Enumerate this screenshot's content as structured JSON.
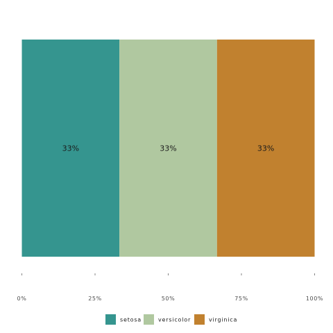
{
  "chart_data": {
    "type": "bar",
    "orientation": "horizontal",
    "stacked": "percent",
    "categories": [
      "setosa",
      "versicolor",
      "virginica"
    ],
    "values": [
      33.33,
      33.33,
      33.34
    ],
    "data_labels": [
      "33%",
      "33%",
      "33%"
    ],
    "colors": [
      "#35958f",
      "#b0c8a0",
      "#c1812f"
    ],
    "x_ticks": [
      0,
      25,
      50,
      75,
      100
    ],
    "x_tick_labels": [
      "0%",
      "25%",
      "50%",
      "75%",
      "100%"
    ],
    "xlim": [
      0,
      100
    ],
    "grid": false,
    "legend": {
      "position": "bottom",
      "entries": [
        "setosa",
        "versicolor",
        "virginica"
      ]
    }
  }
}
